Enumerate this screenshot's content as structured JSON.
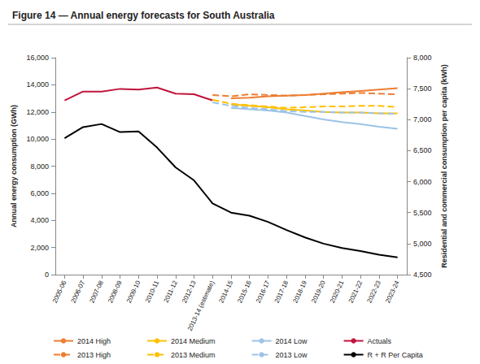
{
  "chart_data": {
    "type": "line",
    "title": "Figure 14 — Annual energy forecasts for South Australia",
    "ylabel": "Annual energy consumption (GWh)",
    "y2label": "Residential and commercial consumption per capita (kWh)",
    "categories": [
      "2005-06",
      "2006-07",
      "2007-08",
      "2008-09",
      "2009-10",
      "2010-11",
      "2011-12",
      "2012-13",
      "2013-14 (estimate)",
      "2014-15",
      "2015-16",
      "2016-17",
      "2017-18",
      "2018-19",
      "2019-20",
      "2020-21",
      "2021-22",
      "2022-23",
      "2023-24"
    ],
    "ylim": [
      0,
      16000
    ],
    "yticks": [
      0,
      {
        "value": 2000,
        "label": "2,000"
      },
      {
        "value": 4000,
        "label": "4,000"
      },
      {
        "value": 6000,
        "label": "6,000"
      },
      {
        "value": 8000,
        "label": "8,000"
      },
      {
        "value": 10000,
        "label": "10,000"
      },
      {
        "value": 12000,
        "label": "12,000"
      },
      {
        "value": 14000,
        "label": "14,000"
      },
      {
        "value": 16000,
        "label": "16,000"
      }
    ],
    "y2lim": [
      4500,
      8000
    ],
    "y2ticks": [
      {
        "value": 4500,
        "label": "4,500"
      },
      {
        "value": 5000,
        "label": "5,000"
      },
      {
        "value": 5500,
        "label": "5,500"
      },
      {
        "value": 6000,
        "label": "6,000"
      },
      {
        "value": 6500,
        "label": "6,500"
      },
      {
        "value": 7000,
        "label": "7,000"
      },
      {
        "value": 7500,
        "label": "7,500"
      },
      {
        "value": 8000,
        "label": "8,000"
      }
    ],
    "grid": false,
    "legend": "bottom",
    "series": [
      {
        "name": "2014 High",
        "color": "#ed7d31",
        "line_style": "solid",
        "values": [
          null,
          null,
          null,
          null,
          null,
          null,
          null,
          null,
          null,
          13000,
          13050,
          13150,
          13200,
          13250,
          13350,
          13450,
          13550,
          13650,
          13750
        ]
      },
      {
        "name": "2014 Medium",
        "color": "#ffc000",
        "line_style": "solid",
        "values": [
          null,
          null,
          null,
          null,
          null,
          null,
          null,
          null,
          null,
          12550,
          12450,
          12350,
          12200,
          12100,
          12000,
          11950,
          11950,
          11900,
          11900
        ]
      },
      {
        "name": "2014 Low",
        "color": "#9dc3e6",
        "line_style": "solid",
        "values": [
          null,
          null,
          null,
          null,
          null,
          null,
          null,
          null,
          null,
          12300,
          12200,
          12100,
          11950,
          11700,
          11450,
          11250,
          11100,
          10900,
          10750
        ]
      },
      {
        "name": "Actuals",
        "color": "#c0143c",
        "line_style": "solid",
        "values": [
          12850,
          13500,
          13500,
          13700,
          13650,
          13800,
          13350,
          13300,
          12850,
          null,
          null,
          null,
          null,
          null,
          null,
          null,
          null,
          null,
          null
        ]
      },
      {
        "name": "2013 High",
        "color": "#ed7d31",
        "line_style": "dashed",
        "values": [
          null,
          null,
          null,
          null,
          null,
          null,
          null,
          null,
          13250,
          13150,
          13300,
          13250,
          13200,
          13250,
          13300,
          13350,
          13400,
          13350,
          13300
        ]
      },
      {
        "name": "2013 Medium",
        "color": "#ffc000",
        "line_style": "dashed",
        "values": [
          null,
          null,
          null,
          null,
          null,
          null,
          null,
          null,
          12900,
          12600,
          12500,
          12400,
          12300,
          12350,
          12400,
          12400,
          12450,
          12450,
          12350
        ]
      },
      {
        "name": "2013 Low",
        "color": "#9dc3e6",
        "line_style": "dashed",
        "values": [
          null,
          null,
          null,
          null,
          null,
          null,
          null,
          null,
          12700,
          12450,
          12300,
          12200,
          12050,
          12000,
          12000,
          11950,
          11950,
          11900,
          11850
        ]
      },
      {
        "name": "R + R Per Capita",
        "color": "#000000",
        "line_style": "solid",
        "axis": "y2",
        "values": [
          6700,
          6880,
          6930,
          6800,
          6810,
          6550,
          6230,
          6020,
          5650,
          5500,
          5450,
          5350,
          5220,
          5100,
          5000,
          4930,
          4880,
          4820,
          4780
        ]
      }
    ]
  }
}
